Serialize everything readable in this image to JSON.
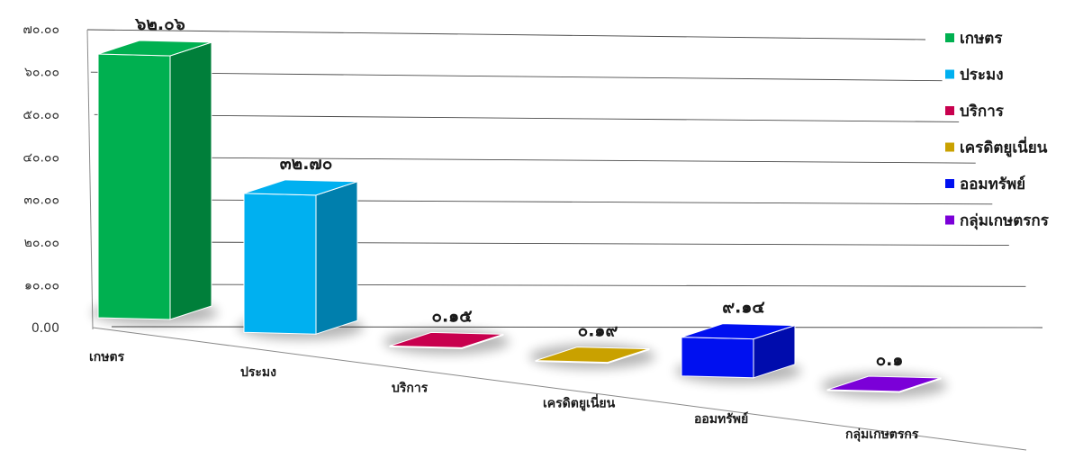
{
  "chart_data": {
    "type": "bar",
    "title": "",
    "xlabel": "",
    "ylabel": "",
    "ylim": [
      0,
      70
    ],
    "y_ticks": [
      {
        "value": 0,
        "label": "0.00"
      },
      {
        "value": 10,
        "label": "๑๐.๐๐"
      },
      {
        "value": 20,
        "label": "๒๐.๐๐"
      },
      {
        "value": 30,
        "label": "๓๐.๐๐"
      },
      {
        "value": 40,
        "label": "๔๐.๐๐"
      },
      {
        "value": 50,
        "label": "๕๐.๐๐"
      },
      {
        "value": 60,
        "label": "๖๐.๐๐"
      },
      {
        "value": 70,
        "label": "๗๐.๐๐"
      }
    ],
    "categories": [
      "เกษตร",
      "ประมง",
      "บริการ",
      "เครดิตยูเนี่ยน",
      "ออมทรัพย์",
      "กลุ่มเกษตรกร"
    ],
    "values": [
      62.06,
      32.7,
      0.15,
      0.19,
      9.14,
      0.1
    ],
    "value_labels": [
      "๖๒.๐๖",
      "๓๒.๗๐",
      "๐.๑๕",
      "๐.๑๙",
      "๙.๑๔",
      "๐.๑"
    ],
    "colors": [
      "#00b050",
      "#00b0f0",
      "#c8004e",
      "#c9a100",
      "#0010f0",
      "#7b00d8"
    ],
    "grid": true,
    "three_d": true,
    "legend_position": "right"
  }
}
